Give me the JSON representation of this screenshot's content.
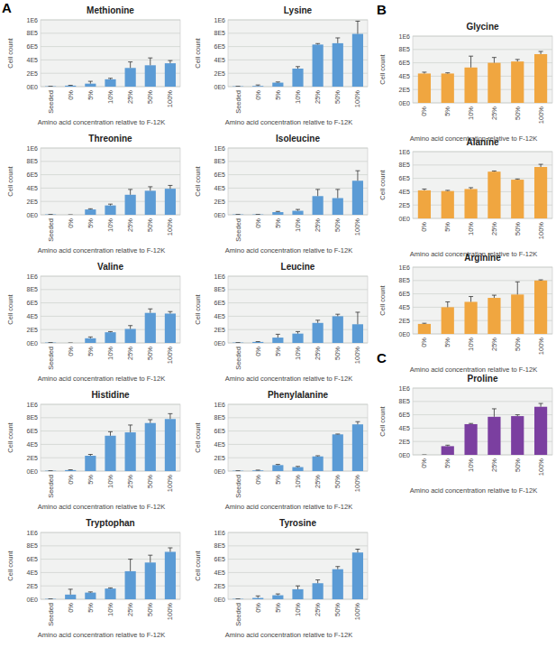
{
  "panel_labels": [
    "A",
    "B",
    "C"
  ],
  "chart_data": [
    {
      "type": "bar",
      "title": "Methionine",
      "x_label": "Amino acid concentration relative to F-12K",
      "y_label": "Cell count",
      "categories": [
        "Seeded",
        "0%",
        "5%",
        "10%",
        "25%",
        "50%",
        "100%"
      ],
      "values": [
        5000,
        15000,
        45000,
        110000,
        280000,
        320000,
        350000
      ],
      "errors": [
        0,
        5000,
        35000,
        15000,
        90000,
        110000,
        40000
      ],
      "color": "#5b9bd5",
      "ylim": [
        0,
        1000000
      ],
      "yticks": [
        {
          "value": 0,
          "label": "0E0"
        },
        {
          "value": 200000,
          "label": "2E5"
        },
        {
          "value": 400000,
          "label": "4E5"
        },
        {
          "value": 600000,
          "label": "6E5"
        },
        {
          "value": 800000,
          "label": "8E5"
        },
        {
          "value": 1000000,
          "label": "1E6"
        }
      ],
      "grid": true
    },
    {
      "type": "bar",
      "title": "Lysine",
      "x_label": "Amino acid concentration relative to F-12K",
      "y_label": "Cell count",
      "categories": [
        "Seeded",
        "0%",
        "5%",
        "10%",
        "25%",
        "50%",
        "100%"
      ],
      "values": [
        5000,
        10000,
        60000,
        270000,
        630000,
        650000,
        790000
      ],
      "errors": [
        0,
        15000,
        10000,
        30000,
        15000,
        80000,
        190000
      ],
      "color": "#5b9bd5",
      "ylim": [
        0,
        1000000
      ],
      "yticks": [
        {
          "value": 0,
          "label": "0E0"
        },
        {
          "value": 200000,
          "label": "2E5"
        },
        {
          "value": 400000,
          "label": "4E5"
        },
        {
          "value": 600000,
          "label": "6E5"
        },
        {
          "value": 800000,
          "label": "8E5"
        },
        {
          "value": 1000000,
          "label": "1E6"
        }
      ],
      "grid": true
    },
    {
      "type": "bar",
      "title": "Threonine",
      "x_label": "Amino acid concentration relative to F-12K",
      "y_label": "Cell count",
      "categories": [
        "Seeded",
        "0%",
        "5%",
        "10%",
        "25%",
        "50%",
        "100%"
      ],
      "values": [
        5000,
        0,
        80000,
        140000,
        300000,
        360000,
        390000
      ],
      "errors": [
        0,
        0,
        10000,
        20000,
        80000,
        60000,
        50000
      ],
      "color": "#5b9bd5",
      "ylim": [
        0,
        1000000
      ],
      "yticks": [
        {
          "value": 0,
          "label": "0E0"
        },
        {
          "value": 200000,
          "label": "2E5"
        },
        {
          "value": 400000,
          "label": "4E5"
        },
        {
          "value": 600000,
          "label": "6E5"
        },
        {
          "value": 800000,
          "label": "8E5"
        },
        {
          "value": 1000000,
          "label": "1E6"
        }
      ],
      "grid": true
    },
    {
      "type": "bar",
      "title": "Isoleucine",
      "x_label": "Amino acid concentration relative to F-12K",
      "y_label": "Cell count",
      "categories": [
        "Seeded",
        "0%",
        "5%",
        "10%",
        "25%",
        "50%",
        "100%"
      ],
      "values": [
        5000,
        5000,
        40000,
        60000,
        280000,
        250000,
        510000
      ],
      "errors": [
        0,
        0,
        10000,
        20000,
        100000,
        130000,
        150000
      ],
      "color": "#5b9bd5",
      "ylim": [
        0,
        1000000
      ],
      "yticks": [
        {
          "value": 0,
          "label": "0E0"
        },
        {
          "value": 200000,
          "label": "2E5"
        },
        {
          "value": 400000,
          "label": "4E5"
        },
        {
          "value": 600000,
          "label": "6E5"
        },
        {
          "value": 800000,
          "label": "8E5"
        },
        {
          "value": 1000000,
          "label": "1E6"
        }
      ],
      "grid": true
    },
    {
      "type": "bar",
      "title": "Valine",
      "x_label": "Amino acid concentration relative to F-12K",
      "y_label": "Cell count",
      "categories": [
        "Seeded",
        "0%",
        "5%",
        "10%",
        "25%",
        "50%",
        "100%"
      ],
      "values": [
        5000,
        0,
        70000,
        160000,
        210000,
        450000,
        440000
      ],
      "errors": [
        0,
        0,
        20000,
        10000,
        50000,
        60000,
        30000
      ],
      "color": "#5b9bd5",
      "ylim": [
        0,
        1000000
      ],
      "yticks": [
        {
          "value": 0,
          "label": "0E0"
        },
        {
          "value": 200000,
          "label": "2E5"
        },
        {
          "value": 400000,
          "label": "4E5"
        },
        {
          "value": 600000,
          "label": "6E5"
        },
        {
          "value": 800000,
          "label": "8E5"
        },
        {
          "value": 1000000,
          "label": "1E6"
        }
      ],
      "grid": true
    },
    {
      "type": "bar",
      "title": "Leucine",
      "x_label": "Amino acid concentration relative to F-12K",
      "y_label": "Cell count",
      "categories": [
        "Seeded",
        "0%",
        "5%",
        "10%",
        "25%",
        "50%",
        "100%"
      ],
      "values": [
        5000,
        15000,
        80000,
        140000,
        300000,
        400000,
        280000
      ],
      "errors": [
        0,
        5000,
        50000,
        30000,
        40000,
        30000,
        180000
      ],
      "color": "#5b9bd5",
      "ylim": [
        0,
        1000000
      ],
      "yticks": [
        {
          "value": 0,
          "label": "0E0"
        },
        {
          "value": 200000,
          "label": "2E5"
        },
        {
          "value": 400000,
          "label": "4E5"
        },
        {
          "value": 600000,
          "label": "6E5"
        },
        {
          "value": 800000,
          "label": "8E5"
        },
        {
          "value": 1000000,
          "label": "1E6"
        }
      ],
      "grid": true
    },
    {
      "type": "bar",
      "title": "Histidine",
      "x_label": "Amino acid concentration relative to F-12K",
      "y_label": "Cell count",
      "categories": [
        "Seeded",
        "0%",
        "5%",
        "10%",
        "25%",
        "50%",
        "100%"
      ],
      "values": [
        5000,
        15000,
        230000,
        530000,
        580000,
        720000,
        780000
      ],
      "errors": [
        0,
        5000,
        20000,
        60000,
        110000,
        50000,
        80000
      ],
      "color": "#5b9bd5",
      "ylim": [
        0,
        1000000
      ],
      "yticks": [
        {
          "value": 0,
          "label": "0E0"
        },
        {
          "value": 200000,
          "label": "2E5"
        },
        {
          "value": 400000,
          "label": "4E5"
        },
        {
          "value": 600000,
          "label": "6E5"
        },
        {
          "value": 800000,
          "label": "8E5"
        },
        {
          "value": 1000000,
          "label": "1E6"
        }
      ],
      "grid": true
    },
    {
      "type": "bar",
      "title": "Phenylalanine",
      "x_label": "Amino acid concentration relative to F-12K",
      "y_label": "Cell count",
      "categories": [
        "Seeded",
        "0%",
        "5%",
        "10%",
        "25%",
        "50%",
        "100%"
      ],
      "values": [
        5000,
        10000,
        90000,
        60000,
        220000,
        550000,
        700000
      ],
      "errors": [
        0,
        5000,
        10000,
        10000,
        10000,
        5000,
        40000
      ],
      "color": "#5b9bd5",
      "ylim": [
        0,
        1000000
      ],
      "yticks": [
        {
          "value": 0,
          "label": "0E0"
        },
        {
          "value": 200000,
          "label": "2E5"
        },
        {
          "value": 400000,
          "label": "4E5"
        },
        {
          "value": 600000,
          "label": "6E5"
        },
        {
          "value": 800000,
          "label": "8E5"
        },
        {
          "value": 1000000,
          "label": "1E6"
        }
      ],
      "grid": true
    },
    {
      "type": "bar",
      "title": "Tryptophan",
      "x_label": "Amino acid concentration relative to F-12K",
      "y_label": "Cell count",
      "categories": [
        "Seeded",
        "0%",
        "5%",
        "10%",
        "25%",
        "50%",
        "100%"
      ],
      "values": [
        5000,
        70000,
        100000,
        160000,
        420000,
        550000,
        710000
      ],
      "errors": [
        0,
        80000,
        10000,
        10000,
        180000,
        110000,
        60000
      ],
      "color": "#5b9bd5",
      "ylim": [
        0,
        1000000
      ],
      "yticks": [
        {
          "value": 0,
          "label": "0E0"
        },
        {
          "value": 200000,
          "label": "2E5"
        },
        {
          "value": 400000,
          "label": "4E5"
        },
        {
          "value": 600000,
          "label": "6E5"
        },
        {
          "value": 800000,
          "label": "8E5"
        },
        {
          "value": 1000000,
          "label": "1E6"
        }
      ],
      "grid": true
    },
    {
      "type": "bar",
      "title": "Tyrosine",
      "x_label": "Amino acid concentration relative to F-12K",
      "y_label": "Cell count",
      "categories": [
        "Seeded",
        "0%",
        "5%",
        "10%",
        "25%",
        "50%",
        "100%"
      ],
      "values": [
        5000,
        20000,
        60000,
        150000,
        240000,
        450000,
        700000
      ],
      "errors": [
        0,
        30000,
        20000,
        50000,
        50000,
        40000,
        50000
      ],
      "color": "#5b9bd5",
      "ylim": [
        0,
        1000000
      ],
      "yticks": [
        {
          "value": 0,
          "label": "0E0"
        },
        {
          "value": 200000,
          "label": "2E5"
        },
        {
          "value": 400000,
          "label": "4E5"
        },
        {
          "value": 600000,
          "label": "6E5"
        },
        {
          "value": 800000,
          "label": "8E5"
        },
        {
          "value": 1000000,
          "label": "1E6"
        }
      ],
      "grid": true
    },
    {
      "type": "bar",
      "title": "Glycine",
      "x_label": "Amino acid concentration relative to F-12K",
      "y_label": "Cell count",
      "categories": [
        "0%",
        "5%",
        "10%",
        "25%",
        "50%",
        "100%"
      ],
      "values": [
        440000,
        440000,
        530000,
        600000,
        620000,
        730000
      ],
      "errors": [
        20000,
        10000,
        170000,
        80000,
        30000,
        40000
      ],
      "color": "#f0a640",
      "ylim": [
        0,
        1000000
      ],
      "yticks": [
        {
          "value": 0,
          "label": "0E0"
        },
        {
          "value": 200000,
          "label": "2E5"
        },
        {
          "value": 400000,
          "label": "4E5"
        },
        {
          "value": 600000,
          "label": "6E5"
        },
        {
          "value": 800000,
          "label": "8E5"
        },
        {
          "value": 1000000,
          "label": "1E6"
        }
      ],
      "grid": true
    },
    {
      "type": "bar",
      "title": "Alanine",
      "x_label": "Amino acid concentration relative to F-12K",
      "y_label": "Cell count",
      "categories": [
        "0%",
        "5%",
        "10%",
        "25%",
        "50%",
        "100%"
      ],
      "values": [
        420000,
        410000,
        440000,
        700000,
        580000,
        770000
      ],
      "errors": [
        20000,
        10000,
        20000,
        10000,
        10000,
        40000
      ],
      "color": "#f0a640",
      "ylim": [
        0,
        1000000
      ],
      "yticks": [
        {
          "value": 0,
          "label": "0E0"
        },
        {
          "value": 200000,
          "label": "2E5"
        },
        {
          "value": 400000,
          "label": "4E5"
        },
        {
          "value": 600000,
          "label": "6E5"
        },
        {
          "value": 800000,
          "label": "8E5"
        },
        {
          "value": 1000000,
          "label": "1E6"
        }
      ],
      "grid": true
    },
    {
      "type": "bar",
      "title": "Arginine",
      "x_label": "Amino acid concentration relative to F-12K",
      "y_label": "Cell count",
      "categories": [
        "0%",
        "5%",
        "10%",
        "25%",
        "50%",
        "100%"
      ],
      "values": [
        150000,
        400000,
        480000,
        540000,
        590000,
        800000
      ],
      "errors": [
        10000,
        80000,
        80000,
        40000,
        190000,
        10000
      ],
      "color": "#f0a640",
      "ylim": [
        0,
        1000000
      ],
      "yticks": [
        {
          "value": 0,
          "label": "0E0"
        },
        {
          "value": 200000,
          "label": "2E5"
        },
        {
          "value": 400000,
          "label": "4E5"
        },
        {
          "value": 600000,
          "label": "6E5"
        },
        {
          "value": 800000,
          "label": "8E5"
        },
        {
          "value": 1000000,
          "label": "1E6"
        }
      ],
      "grid": true
    },
    {
      "type": "bar",
      "title": "Proline",
      "x_label": "Amino acid concentration relative to F-12K",
      "y_label": "Cell count",
      "categories": [
        "0%",
        "5%",
        "10%",
        "25%",
        "50%",
        "100%"
      ],
      "values": [
        0,
        130000,
        460000,
        570000,
        580000,
        720000
      ],
      "errors": [
        0,
        15000,
        10000,
        120000,
        20000,
        50000
      ],
      "color": "#7b3fa0",
      "ylim": [
        0,
        1000000
      ],
      "yticks": [
        {
          "value": 0,
          "label": "0E0"
        },
        {
          "value": 200000,
          "label": "2E5"
        },
        {
          "value": 400000,
          "label": "4E5"
        },
        {
          "value": 600000,
          "label": "6E5"
        },
        {
          "value": 800000,
          "label": "8E5"
        },
        {
          "value": 1000000,
          "label": "1E6"
        }
      ],
      "grid": true
    }
  ]
}
